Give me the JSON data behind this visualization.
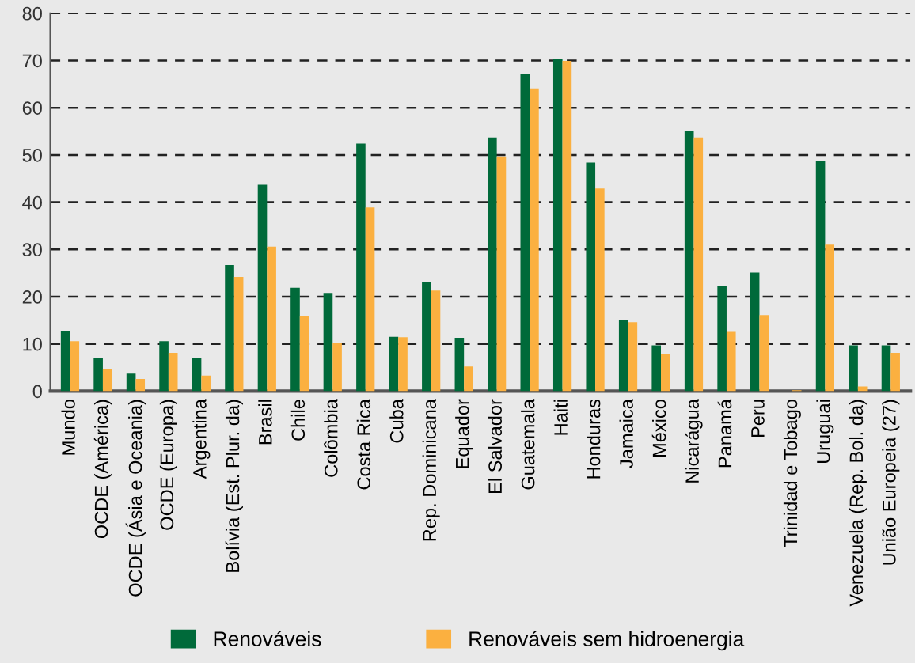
{
  "chart_data": {
    "type": "bar",
    "categories": [
      "Mundo",
      "OCDE (América)",
      "OCDE (Ásia e Oceania)",
      "OCDE (Europa)",
      "Argentina",
      "Bolívia (Est. Plur. da)",
      "Brasil",
      "Chile",
      "Colômbia",
      "Costa Rica",
      "Cuba",
      "Rep. Dominicana",
      "Equador",
      "El Salvador",
      "Guatemala",
      "Haiti",
      "Honduras",
      "Jamaica",
      "México",
      "Nicarágua",
      "Panamá",
      "Peru",
      "Trinidad e Tobago",
      "Uruguai",
      "Venezuela (Rep. Bol. da)",
      "União Europeia (27)"
    ],
    "series": [
      {
        "name": "Renováveis",
        "color": "#006a3a",
        "values": [
          12.8,
          7.0,
          3.7,
          10.6,
          7.0,
          26.7,
          43.7,
          21.9,
          20.8,
          52.4,
          11.5,
          23.2,
          11.3,
          53.7,
          67.1,
          70.4,
          48.4,
          15.0,
          9.7,
          55.1,
          22.2,
          25.1,
          null,
          48.8,
          9.7,
          9.7
        ]
      },
      {
        "name": "Renováveis sem hidroenergia",
        "color": "#fbb040",
        "values": [
          10.6,
          4.7,
          2.6,
          8.1,
          3.3,
          24.2,
          30.6,
          15.9,
          10.1,
          38.9,
          11.4,
          21.3,
          5.2,
          49.7,
          64.1,
          69.9,
          42.9,
          14.6,
          7.8,
          53.7,
          12.7,
          16.1,
          0.2,
          31.0,
          1.0,
          8.1
        ]
      }
    ],
    "ylim": [
      0,
      80
    ],
    "yticks": [
      0,
      10,
      20,
      30,
      40,
      50,
      60,
      70,
      80
    ],
    "grid": "y",
    "legend": "bottom"
  }
}
